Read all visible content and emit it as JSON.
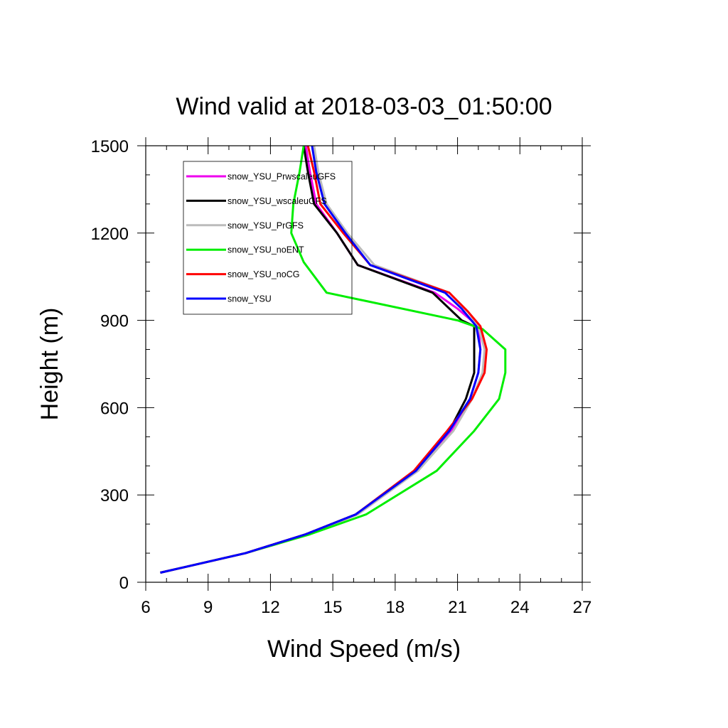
{
  "chart_data": {
    "type": "line",
    "title": "Wind valid at 2018-03-03_01:50:00",
    "xlabel": "Wind Speed (m/s)",
    "ylabel": "Height (m)",
    "xlim": [
      6,
      27
    ],
    "ylim": [
      0,
      1500
    ],
    "xticks": [
      6,
      9,
      12,
      15,
      18,
      21,
      24,
      27
    ],
    "yticks": [
      0,
      300,
      600,
      900,
      1200,
      1500
    ],
    "grid": false,
    "legend_position": "top-left",
    "series": [
      {
        "name": "snow_YSU_PrwscaleuGFS",
        "color": "#ee00ee",
        "x": [
          6.7,
          10.8,
          13.7,
          16.1,
          19.1,
          20.7,
          21.6,
          22.0,
          22.1,
          22.0,
          21.0,
          19.9,
          16.2,
          15.2,
          14.2,
          13.9,
          13.7
        ],
        "y": [
          33,
          100,
          165,
          233,
          383,
          520,
          630,
          720,
          800,
          880,
          940,
          995,
          1090,
          1200,
          1300,
          1410,
          1500
        ]
      },
      {
        "name": "snow_YSU_wscaleuGFS",
        "color": "#000000",
        "x": [
          6.7,
          10.8,
          13.7,
          16.1,
          19.0,
          20.6,
          21.4,
          21.8,
          21.8,
          21.8,
          21.2,
          19.8,
          16.2,
          15.2,
          14.1,
          13.8,
          13.6
        ],
        "y": [
          33,
          100,
          165,
          233,
          383,
          520,
          630,
          720,
          800,
          880,
          900,
          995,
          1090,
          1200,
          1300,
          1410,
          1500
        ]
      },
      {
        "name": "snow_YSU_PrGFS",
        "color": "#bbbbbb",
        "x": [
          6.7,
          10.8,
          13.8,
          16.2,
          19.1,
          20.8,
          21.7,
          22.2,
          22.3,
          22.0,
          21.5,
          20.6,
          17.0,
          15.7,
          14.7,
          14.3,
          14.1
        ],
        "y": [
          33,
          100,
          165,
          233,
          383,
          520,
          630,
          720,
          800,
          880,
          930,
          995,
          1090,
          1200,
          1300,
          1410,
          1500
        ]
      },
      {
        "name": "snow_YSU_noENT",
        "color": "#00ee00",
        "x": [
          6.7,
          10.8,
          13.9,
          16.6,
          20.0,
          21.8,
          23.0,
          23.3,
          23.3,
          22.2,
          21.0,
          14.7,
          13.6,
          13.0,
          13.1,
          13.4,
          13.6
        ],
        "y": [
          33,
          100,
          165,
          233,
          383,
          520,
          630,
          720,
          800,
          870,
          900,
          995,
          1100,
          1200,
          1300,
          1410,
          1500
        ]
      },
      {
        "name": "snow_YSU_noCG",
        "color": "#ff0000",
        "x": [
          6.7,
          10.8,
          13.7,
          16.1,
          18.9,
          20.5,
          21.7,
          22.3,
          22.4,
          22.1,
          21.5,
          20.6,
          16.8,
          15.5,
          14.4,
          14.1,
          13.8
        ],
        "y": [
          33,
          100,
          165,
          233,
          383,
          520,
          630,
          720,
          800,
          880,
          930,
          995,
          1090,
          1200,
          1300,
          1410,
          1500
        ]
      },
      {
        "name": "snow_YSU",
        "color": "#0000ff",
        "x": [
          6.7,
          10.8,
          13.7,
          16.1,
          19.0,
          20.6,
          21.6,
          22.0,
          22.1,
          21.9,
          21.2,
          20.4,
          16.8,
          15.6,
          14.6,
          14.2,
          14.0
        ],
        "y": [
          33,
          100,
          165,
          233,
          383,
          520,
          630,
          720,
          800,
          880,
          940,
          995,
          1090,
          1200,
          1300,
          1410,
          1500
        ]
      }
    ]
  }
}
